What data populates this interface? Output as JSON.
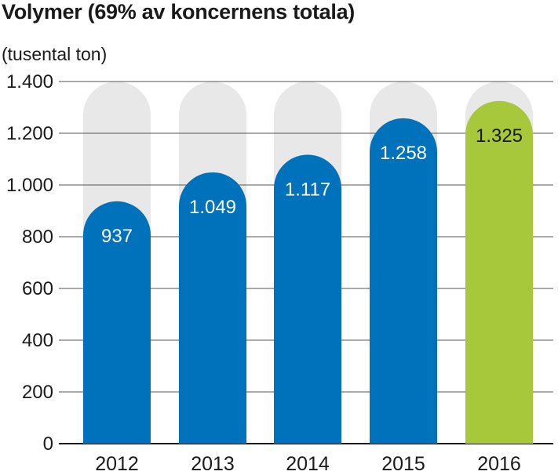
{
  "chart_data": {
    "type": "bar",
    "title": "Volymer (69% av koncernens totala)",
    "unit_label": "(tusental ton)",
    "categories": [
      "2012",
      "2013",
      "2014",
      "2015",
      "2016"
    ],
    "values": [
      937,
      1049,
      1117,
      1258,
      1325
    ],
    "value_labels": [
      "937",
      "1.049",
      "1.117",
      "1.258",
      "1.325"
    ],
    "ylim": [
      0,
      1400
    ],
    "yticks": [
      0,
      200,
      400,
      600,
      800,
      1000,
      1200,
      1400
    ],
    "ytick_labels": [
      "0",
      "200",
      "400",
      "600",
      "800",
      "1.000",
      "1.200",
      "1.400"
    ],
    "grid": true,
    "colors": {
      "bar": "#0072bc",
      "highlight_bar": "#a6c83a",
      "background_pill": "#e8e8e8",
      "grid": "#555555",
      "value_text_on_blue": "#ffffff",
      "value_text_on_green": "#1a1a1a"
    },
    "highlight_index": 4
  }
}
